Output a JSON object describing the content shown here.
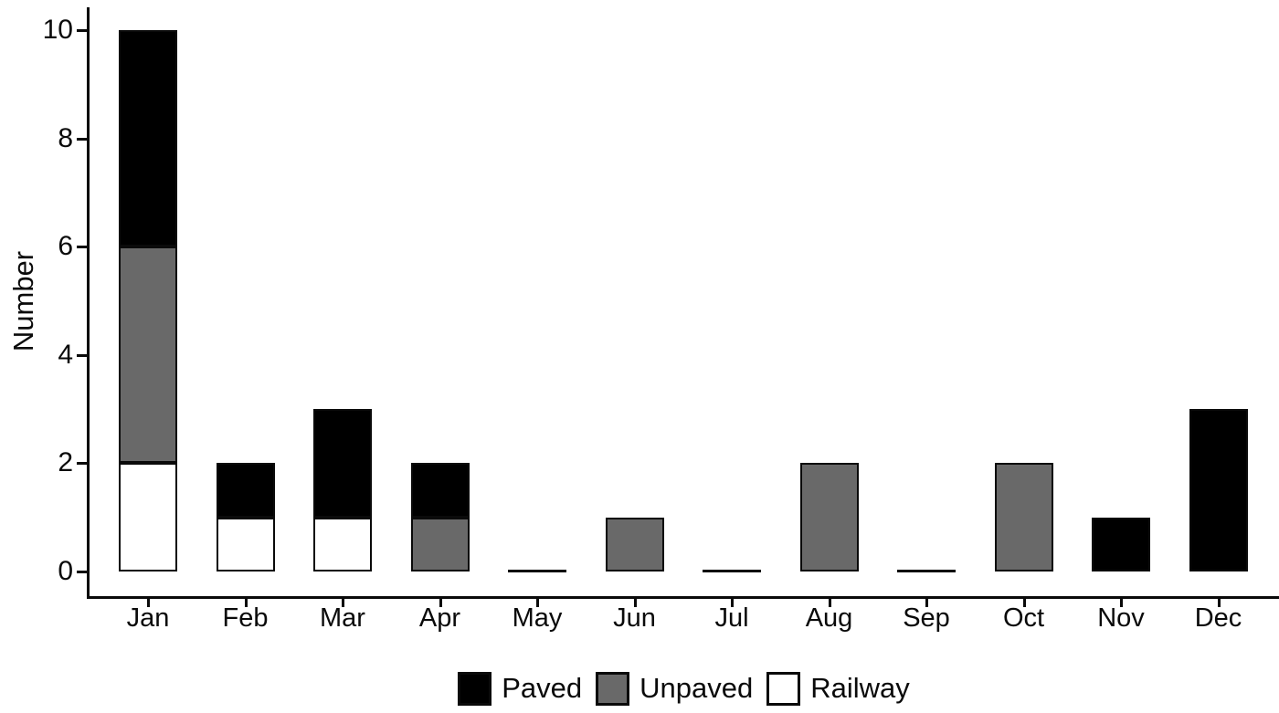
{
  "chart_data": {
    "type": "bar",
    "stacked": true,
    "title": "",
    "xlabel": "",
    "ylabel": "Number",
    "categories": [
      "Jan",
      "Feb",
      "Mar",
      "Apr",
      "May",
      "Jun",
      "Jul",
      "Aug",
      "Sep",
      "Oct",
      "Nov",
      "Dec"
    ],
    "series": [
      {
        "name": "Paved",
        "color": "#000000",
        "values": [
          4,
          1,
          2,
          1,
          0,
          0,
          0,
          0,
          0,
          0,
          1,
          3
        ]
      },
      {
        "name": "Unpaved",
        "color": "#696969",
        "values": [
          4,
          0,
          0,
          1,
          0,
          1,
          0,
          2,
          0,
          2,
          0,
          0
        ]
      },
      {
        "name": "Railway",
        "color": "#ffffff",
        "values": [
          2,
          1,
          1,
          0,
          0,
          0,
          0,
          0,
          0,
          0,
          0,
          0
        ]
      }
    ],
    "stack_order_bottom_to_top": [
      "Railway",
      "Unpaved",
      "Paved"
    ],
    "totals": [
      10,
      2,
      3,
      2,
      0,
      1,
      0,
      2,
      0,
      2,
      1,
      3
    ],
    "y_ticks": [
      0,
      2,
      4,
      6,
      8,
      10
    ],
    "ylim": [
      0,
      10
    ],
    "grid": false,
    "legend_position": "bottom-center"
  },
  "colors": {
    "axis": "#0a0a0a",
    "background": "#ffffff",
    "paved": "#000000",
    "unpaved": "#696969",
    "railway": "#ffffff"
  }
}
